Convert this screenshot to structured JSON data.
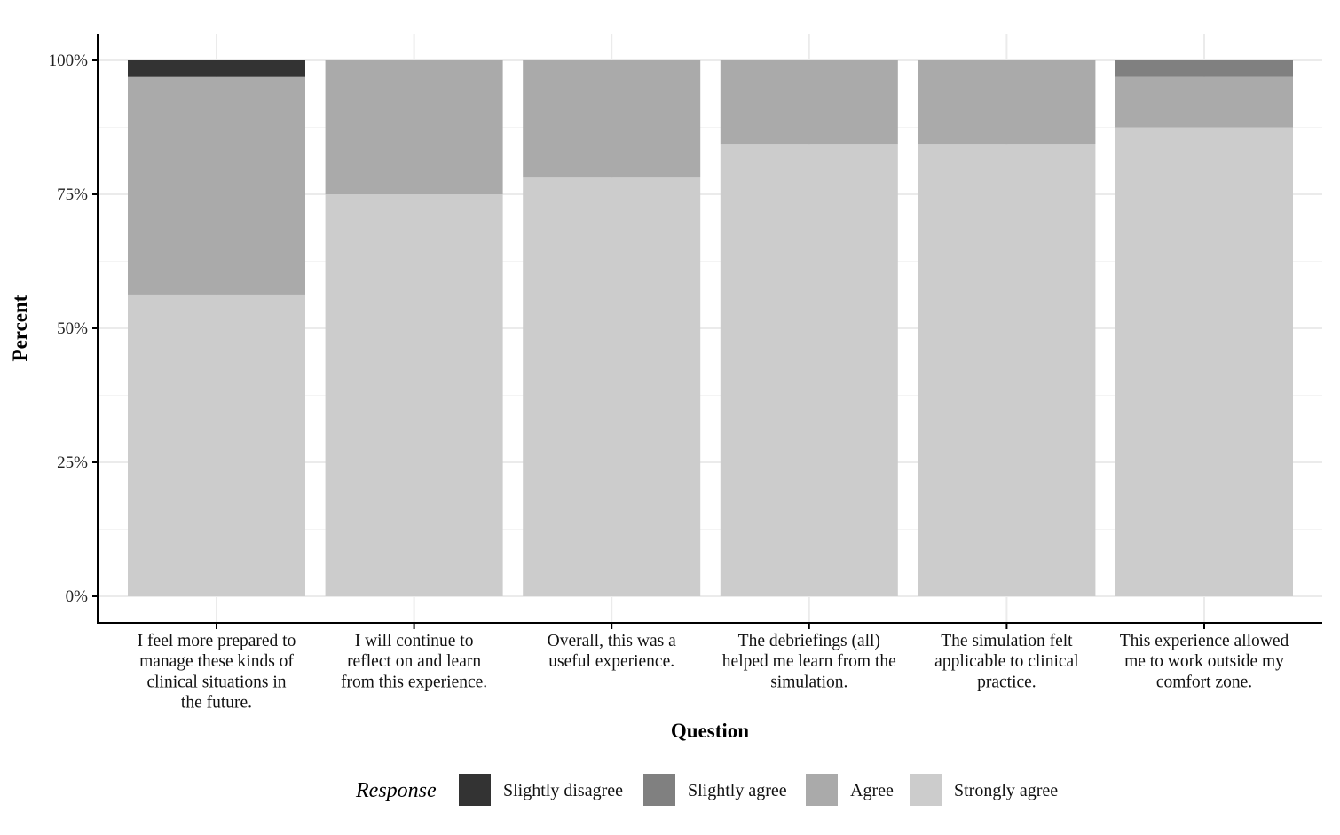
{
  "chart_data": {
    "type": "bar",
    "stacked": true,
    "xlabel": "Question",
    "ylabel": "Percent",
    "ylim": [
      0,
      100
    ],
    "y_ticks": [
      0,
      25,
      50,
      75,
      100
    ],
    "y_tick_labels": [
      "0%",
      "25%",
      "50%",
      "75%",
      "100%"
    ],
    "grid": true,
    "legend_position": "bottom",
    "legend_title": "Response",
    "categories": [
      [
        "I feel more prepared to",
        "manage these kinds of",
        "clinical situations in",
        "the future."
      ],
      [
        "I will continue to",
        "reflect on and learn",
        "from this experience."
      ],
      [
        "Overall, this was a",
        "useful experience."
      ],
      [
        "The debriefings (all)",
        "helped me learn from the",
        "simulation."
      ],
      [
        "The simulation felt",
        "applicable to clinical",
        "practice."
      ],
      [
        "This experience allowed",
        "me to work outside my",
        "comfort zone."
      ]
    ],
    "series": [
      {
        "name": "Strongly agree",
        "color": "#cccccc",
        "values": [
          56.3,
          75.0,
          78.1,
          84.4,
          84.4,
          87.5
        ]
      },
      {
        "name": "Agree",
        "color": "#aaaaaa",
        "values": [
          40.6,
          25.0,
          21.9,
          15.6,
          15.6,
          9.4
        ]
      },
      {
        "name": "Slightly agree",
        "color": "#808080",
        "values": [
          0,
          0,
          0,
          0,
          0,
          3.1
        ]
      },
      {
        "name": "Slightly disagree",
        "color": "#333333",
        "values": [
          3.1,
          0,
          0,
          0,
          0,
          0
        ]
      }
    ],
    "legend_order": [
      "Slightly disagree",
      "Slightly agree",
      "Agree",
      "Strongly agree"
    ]
  }
}
